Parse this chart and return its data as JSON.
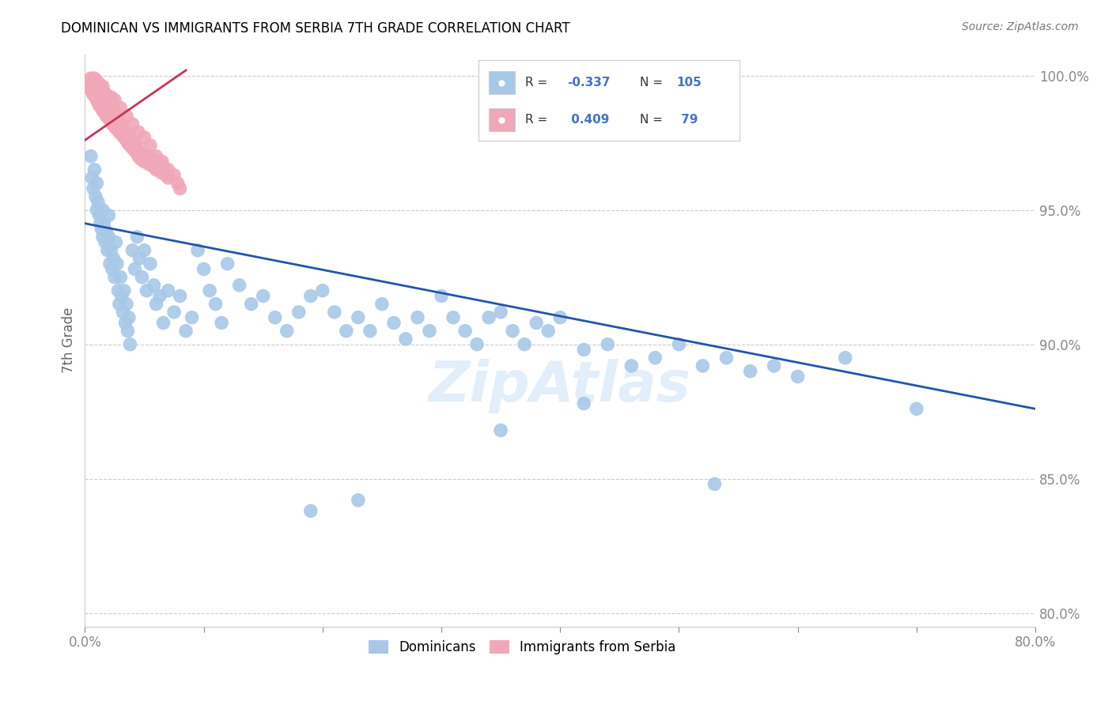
{
  "title": "DOMINICAN VS IMMIGRANTS FROM SERBIA 7TH GRADE CORRELATION CHART",
  "source": "Source: ZipAtlas.com",
  "ylabel_label": "7th Grade",
  "xlim": [
    0.0,
    0.8
  ],
  "ylim": [
    0.795,
    1.008
  ],
  "blue_R": -0.337,
  "blue_N": 105,
  "pink_R": 0.409,
  "pink_N": 79,
  "blue_color": "#a8c8e8",
  "pink_color": "#f0a8b8",
  "blue_line_color": "#2255aa",
  "pink_line_color": "#cc3355",
  "blue_line_x0": 0.0,
  "blue_line_x1": 0.8,
  "blue_line_y0": 0.945,
  "blue_line_y1": 0.876,
  "pink_line_x0": 0.0,
  "pink_line_x1": 0.085,
  "pink_line_y0": 0.976,
  "pink_line_y1": 1.002,
  "blue_scatter_x": [
    0.005,
    0.006,
    0.007,
    0.008,
    0.009,
    0.01,
    0.01,
    0.011,
    0.012,
    0.013,
    0.014,
    0.015,
    0.015,
    0.016,
    0.017,
    0.018,
    0.019,
    0.02,
    0.02,
    0.021,
    0.022,
    0.023,
    0.024,
    0.025,
    0.026,
    0.027,
    0.028,
    0.029,
    0.03,
    0.031,
    0.032,
    0.033,
    0.034,
    0.035,
    0.036,
    0.037,
    0.038,
    0.04,
    0.042,
    0.044,
    0.046,
    0.048,
    0.05,
    0.052,
    0.055,
    0.058,
    0.06,
    0.063,
    0.066,
    0.07,
    0.075,
    0.08,
    0.085,
    0.09,
    0.095,
    0.1,
    0.105,
    0.11,
    0.115,
    0.12,
    0.13,
    0.14,
    0.15,
    0.16,
    0.17,
    0.18,
    0.19,
    0.2,
    0.21,
    0.22,
    0.23,
    0.24,
    0.25,
    0.26,
    0.27,
    0.28,
    0.29,
    0.3,
    0.31,
    0.32,
    0.33,
    0.34,
    0.35,
    0.36,
    0.37,
    0.38,
    0.39,
    0.4,
    0.42,
    0.44,
    0.46,
    0.48,
    0.5,
    0.52,
    0.54,
    0.56,
    0.58,
    0.6,
    0.64,
    0.7,
    0.19,
    0.23,
    0.35,
    0.42,
    0.53
  ],
  "blue_scatter_y": [
    0.97,
    0.962,
    0.958,
    0.965,
    0.955,
    0.96,
    0.95,
    0.953,
    0.948,
    0.945,
    0.943,
    0.94,
    0.95,
    0.945,
    0.938,
    0.942,
    0.935,
    0.94,
    0.948,
    0.93,
    0.935,
    0.928,
    0.932,
    0.925,
    0.938,
    0.93,
    0.92,
    0.915,
    0.925,
    0.918,
    0.912,
    0.92,
    0.908,
    0.915,
    0.905,
    0.91,
    0.9,
    0.935,
    0.928,
    0.94,
    0.932,
    0.925,
    0.935,
    0.92,
    0.93,
    0.922,
    0.915,
    0.918,
    0.908,
    0.92,
    0.912,
    0.918,
    0.905,
    0.91,
    0.935,
    0.928,
    0.92,
    0.915,
    0.908,
    0.93,
    0.922,
    0.915,
    0.918,
    0.91,
    0.905,
    0.912,
    0.918,
    0.92,
    0.912,
    0.905,
    0.91,
    0.905,
    0.915,
    0.908,
    0.902,
    0.91,
    0.905,
    0.918,
    0.91,
    0.905,
    0.9,
    0.91,
    0.912,
    0.905,
    0.9,
    0.908,
    0.905,
    0.91,
    0.898,
    0.9,
    0.892,
    0.895,
    0.9,
    0.892,
    0.895,
    0.89,
    0.892,
    0.888,
    0.895,
    0.876,
    0.838,
    0.842,
    0.868,
    0.878,
    0.848
  ],
  "pink_scatter_x": [
    0.002,
    0.003,
    0.004,
    0.005,
    0.005,
    0.006,
    0.007,
    0.008,
    0.009,
    0.01,
    0.01,
    0.011,
    0.012,
    0.013,
    0.014,
    0.015,
    0.016,
    0.017,
    0.018,
    0.019,
    0.02,
    0.021,
    0.022,
    0.023,
    0.024,
    0.025,
    0.026,
    0.027,
    0.028,
    0.029,
    0.03,
    0.031,
    0.032,
    0.033,
    0.034,
    0.035,
    0.036,
    0.037,
    0.038,
    0.039,
    0.04,
    0.041,
    0.042,
    0.043,
    0.044,
    0.045,
    0.046,
    0.047,
    0.048,
    0.05,
    0.052,
    0.054,
    0.056,
    0.058,
    0.06,
    0.062,
    0.064,
    0.066,
    0.068,
    0.07,
    0.005,
    0.008,
    0.012,
    0.015,
    0.018,
    0.022,
    0.025,
    0.03,
    0.035,
    0.04,
    0.045,
    0.05,
    0.055,
    0.06,
    0.065,
    0.07,
    0.075,
    0.078,
    0.08
  ],
  "pink_scatter_y": [
    0.998,
    0.997,
    0.996,
    0.998,
    0.995,
    0.994,
    0.993,
    0.999,
    0.992,
    0.998,
    0.991,
    0.99,
    0.989,
    0.996,
    0.988,
    0.987,
    0.994,
    0.986,
    0.985,
    0.992,
    0.984,
    0.99,
    0.983,
    0.982,
    0.988,
    0.981,
    0.986,
    0.98,
    0.984,
    0.979,
    0.982,
    0.978,
    0.98,
    0.977,
    0.978,
    0.976,
    0.975,
    0.978,
    0.974,
    0.976,
    0.973,
    0.975,
    0.972,
    0.974,
    0.971,
    0.97,
    0.972,
    0.969,
    0.971,
    0.968,
    0.97,
    0.967,
    0.969,
    0.966,
    0.965,
    0.968,
    0.964,
    0.966,
    0.963,
    0.962,
    0.999,
    0.998,
    0.997,
    0.996,
    0.993,
    0.992,
    0.991,
    0.988,
    0.985,
    0.982,
    0.979,
    0.977,
    0.974,
    0.97,
    0.968,
    0.965,
    0.963,
    0.96,
    0.958
  ]
}
